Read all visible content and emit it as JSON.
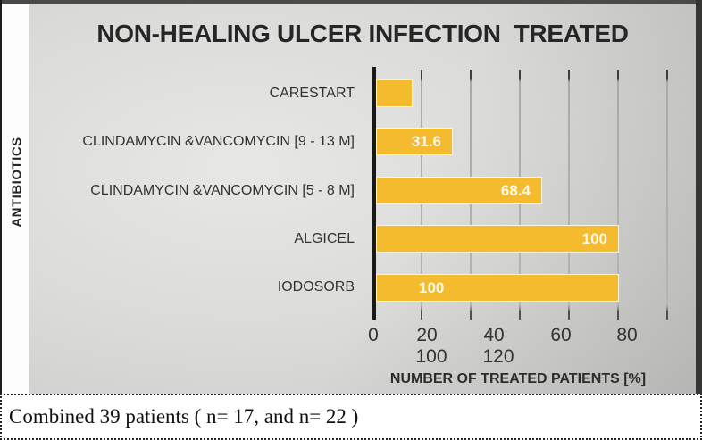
{
  "chart_data": {
    "type": "bar",
    "orientation": "horizontal",
    "title": "NON-HEALING ULCER INFECTION  TREATED",
    "xlabel": "NUMBER OF TREATED PATIENTS [%]",
    "ylabel": "ANTIBIOTICS",
    "xlim": [
      0,
      120
    ],
    "gridlines": true,
    "legend": false,
    "bar_color": "#f4bb2e",
    "categories": [
      "CARESTART",
      "CLINDAMYCIN &VANCOMYCIN [9 - 13 M]",
      "CLINDAMYCIN &VANCOMYCIN [5 - 8 M]",
      "ALGICEL",
      "IODOSORB"
    ],
    "values": [
      15,
      31.6,
      68.4,
      100,
      100
    ],
    "bar_labels": [
      "",
      "31.6",
      "68.4",
      "100",
      "100"
    ],
    "x_ticks_row1": [
      "0",
      "20",
      "40",
      "60",
      "80"
    ],
    "x_ticks_row2": [
      "100",
      "120"
    ]
  },
  "caption": {
    "text": "Combined 39 patients ( n= 17, and n= 22 )"
  }
}
